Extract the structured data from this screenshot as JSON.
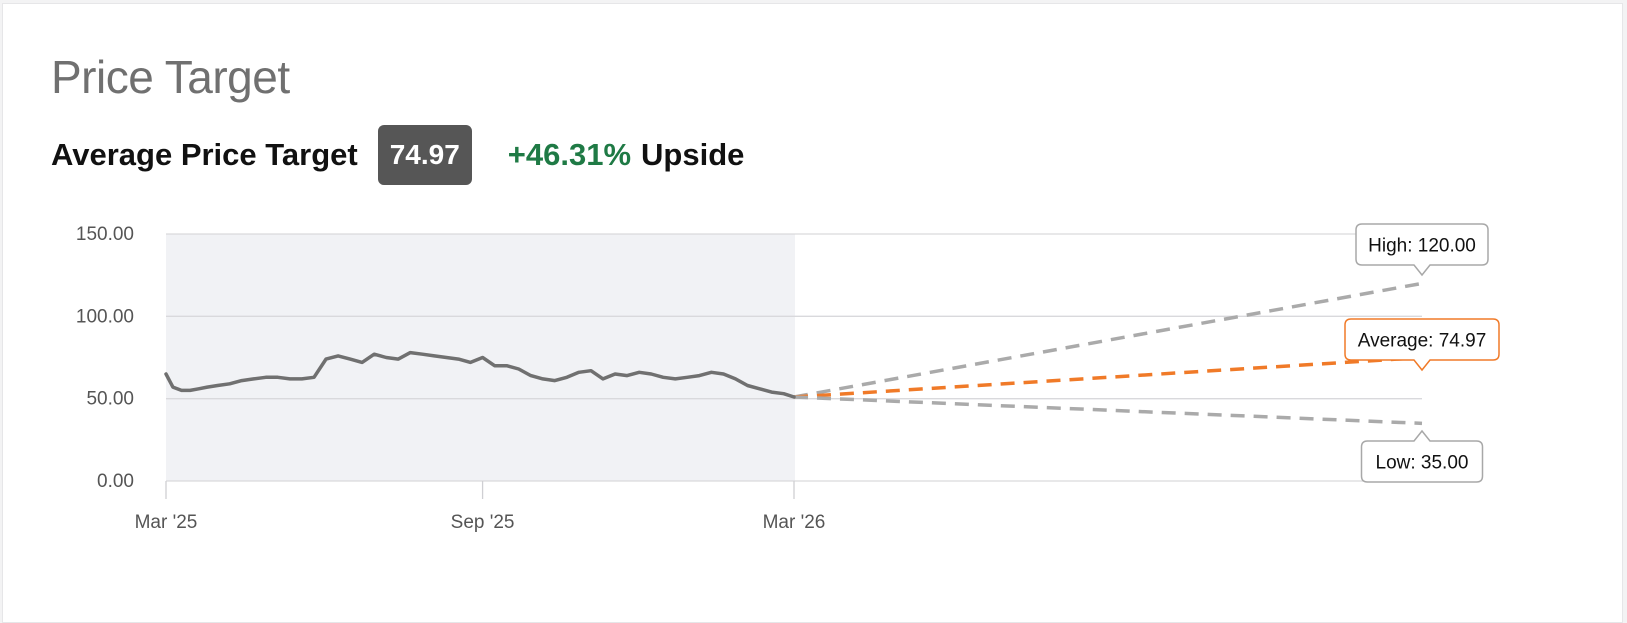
{
  "header": {
    "title": "Price Target",
    "avg_label": "Average Price Target",
    "avg_value": "74.97",
    "upside_pct": "+46.31%",
    "upside_word": "Upside"
  },
  "colors": {
    "price_line": "#707070",
    "average": "#f07a28",
    "range": "#aaaaaa",
    "history_bg": "#f1f2f5",
    "upside_green": "#1f7a45"
  },
  "chart_data": {
    "type": "line",
    "title": "",
    "xlabel": "",
    "ylabel": "",
    "ylim": [
      0,
      150
    ],
    "y_ticks": [
      "0.00",
      "50.00",
      "100.00",
      "150.00"
    ],
    "x_ticks": [
      "Mar '25",
      "Sep '25",
      "Mar '26"
    ],
    "grid": true,
    "history_shading": "Mar '25 to Mar '26",
    "series": [
      {
        "name": "",
        "x": [
          "2025-03-01",
          "2025-03-05",
          "2025-03-10",
          "2025-03-15",
          "2025-03-20",
          "2025-03-25",
          "2025-03-31",
          "2025-04-07",
          "2025-04-14",
          "2025-04-21",
          "2025-04-28",
          "2025-05-05",
          "2025-05-12",
          "2025-05-19",
          "2025-05-26",
          "2025-06-02",
          "2025-06-09",
          "2025-06-16",
          "2025-06-23",
          "2025-06-30",
          "2025-07-07",
          "2025-07-14",
          "2025-07-21",
          "2025-07-28",
          "2025-08-04",
          "2025-08-11",
          "2025-08-18",
          "2025-08-25",
          "2025-09-01",
          "2025-09-08",
          "2025-09-15",
          "2025-09-22",
          "2025-09-29",
          "2025-10-06",
          "2025-10-13",
          "2025-10-20",
          "2025-10-27",
          "2025-11-03",
          "2025-11-10",
          "2025-11-17",
          "2025-11-24",
          "2025-12-01",
          "2025-12-08",
          "2025-12-15",
          "2025-12-22",
          "2025-12-29",
          "2026-01-05",
          "2026-01-12",
          "2026-01-19",
          "2026-01-26",
          "2026-02-02",
          "2026-02-09",
          "2026-02-16",
          "2026-02-23",
          "2026-03-01"
        ],
        "y": [
          65,
          57,
          55,
          55,
          56,
          57,
          58,
          59,
          61,
          62,
          63,
          63,
          62,
          62,
          63,
          74,
          76,
          74,
          72,
          77,
          75,
          74,
          78,
          77,
          76,
          75,
          74,
          72,
          75,
          70,
          70,
          68,
          64,
          62,
          61,
          63,
          66,
          67,
          62,
          65,
          64,
          66,
          65,
          63,
          62,
          63,
          64,
          66,
          65,
          62,
          58,
          56,
          54,
          53,
          51
        ]
      },
      {
        "name": "High",
        "x": [
          "2026-03-01",
          "2027-03-01"
        ],
        "y": [
          51,
          120
        ]
      },
      {
        "name": "Average",
        "x": [
          "2026-03-01",
          "2027-03-01"
        ],
        "y": [
          51,
          74.97
        ]
      },
      {
        "name": "Low",
        "x": [
          "2026-03-01",
          "2027-03-01"
        ],
        "y": [
          51,
          35
        ]
      }
    ],
    "annotations": [
      "High: 120.00",
      "Average: 74.97",
      "Low: 35.00"
    ]
  }
}
